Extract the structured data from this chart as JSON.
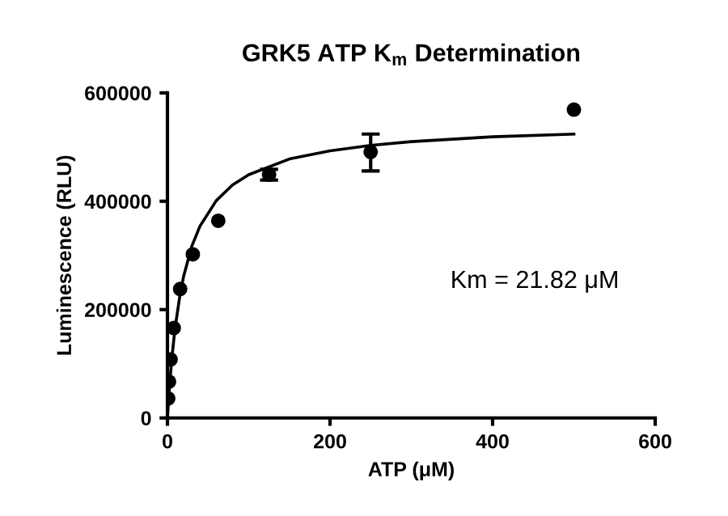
{
  "chart_data": {
    "type": "scatter",
    "title": "GRK5 ATP K$_{m}$ Determination",
    "xlabel": "ATP (μM)",
    "ylabel": "Luminescence (RLU)",
    "annotations": [
      "Km = 21.82 μM"
    ],
    "series": [
      {
        "color": "#000000",
        "marker": "circle",
        "x": [
          0.98,
          1.95,
          3.9,
          7.8,
          15.6,
          31.25,
          62.5,
          125,
          250,
          500
        ],
        "values": [
          36000,
          67000,
          108000,
          166000,
          238000,
          302000,
          364000,
          449000,
          491000,
          569000
        ],
        "errors": [
          null,
          null,
          null,
          null,
          null,
          null,
          null,
          10000,
          [
            456000,
            524000
          ],
          null
        ]
      },
      {
        "type": "line",
        "color": "#000000",
        "marker": "none",
        "line_style": "solid",
        "x": [
          0,
          1,
          2,
          4,
          6,
          8,
          10,
          15,
          20,
          30,
          40,
          60,
          80,
          100,
          150,
          200,
          250,
          300,
          400,
          500
        ],
        "values": [
          0,
          24000,
          46000,
          85000,
          118000,
          147000,
          172000,
          223000,
          262000,
          317000,
          354000,
          401000,
          430000,
          449000,
          478000,
          493000,
          503000,
          510000,
          519000,
          524000
        ]
      }
    ],
    "xlim": [
      0,
      600
    ],
    "xticks": [
      0,
      200,
      400,
      600
    ],
    "ylim": [
      0,
      600000
    ],
    "yticks": [
      0,
      200000,
      400000,
      600000
    ],
    "grid": false,
    "legend": false
  }
}
